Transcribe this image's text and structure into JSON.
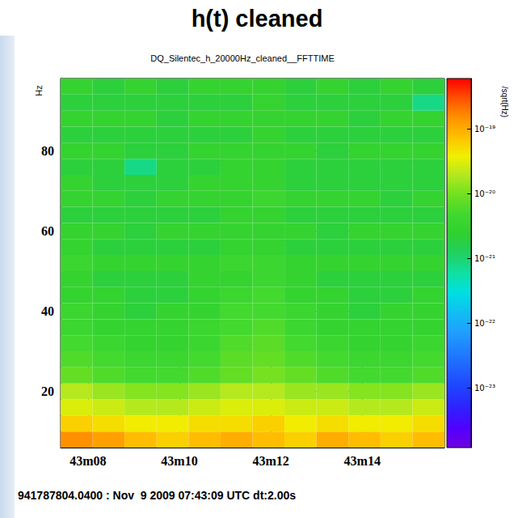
{
  "header": "h(t) cleaned",
  "footer": "941787804.0400 : Nov  9 2009 07:43:09 UTC dt:2.00s",
  "chart_data": {
    "type": "heatmap",
    "title": "DQ_Silentec_h_20000Hz_cleaned__FFTTIME",
    "ylabel": "Hz",
    "xlim": [
      7.4,
      15.8
    ],
    "xticks": [
      {
        "value": 8,
        "label": "43m08"
      },
      {
        "value": 10,
        "label": "43m10"
      },
      {
        "value": 12,
        "label": "43m12"
      },
      {
        "value": 14,
        "label": "43m14"
      }
    ],
    "ylim": [
      6,
      98
    ],
    "yticks": [
      20,
      40,
      60,
      80
    ],
    "grid": true,
    "x_edges": [
      7.4,
      8.1,
      8.8,
      9.5,
      10.2,
      10.9,
      11.6,
      12.3,
      13.0,
      13.7,
      14.4,
      15.1,
      15.8
    ],
    "y_edges": [
      6,
      10,
      14,
      18,
      22,
      26,
      30,
      34,
      38,
      42,
      46,
      50,
      54,
      58,
      62,
      66,
      70,
      74,
      78,
      82,
      86,
      90,
      94,
      98
    ],
    "cells": [
      [
        1.5e-19,
        1.2e-19,
        8e-20,
        6e-20,
        8e-20,
        1e-19,
        8e-20,
        6e-20,
        1e-19,
        8e-20,
        6e-20,
        8e-20
      ],
      [
        6e-20,
        5e-20,
        4e-20,
        4e-20,
        5e-20,
        5e-20,
        6e-20,
        4e-20,
        5e-20,
        4e-20,
        4e-20,
        5e-20
      ],
      [
        3e-20,
        2.5e-20,
        2e-20,
        2e-20,
        2.5e-20,
        3e-20,
        3e-20,
        2.5e-20,
        2.5e-20,
        2e-20,
        2e-20,
        2.5e-20
      ],
      [
        2e-20,
        1.5e-20,
        1.2e-20,
        1.2e-20,
        1.5e-20,
        2e-20,
        2e-20,
        1.5e-20,
        1.5e-20,
        1.2e-20,
        1.2e-20,
        1.5e-20
      ],
      [
        8e-21,
        6e-21,
        5e-21,
        5e-21,
        6e-21,
        8e-21,
        1e-20,
        8e-21,
        6e-21,
        5e-21,
        5e-21,
        6e-21
      ],
      [
        6e-21,
        5e-21,
        4e-21,
        4e-21,
        5e-21,
        7e-21,
        8e-21,
        6e-21,
        5e-21,
        4e-21,
        4e-21,
        5e-21
      ],
      [
        5e-21,
        4e-21,
        3e-21,
        3e-21,
        4e-21,
        6e-21,
        7e-21,
        5e-21,
        4e-21,
        3e-21,
        3e-21,
        4e-21
      ],
      [
        4e-21,
        3e-21,
        3e-21,
        3e-21,
        4e-21,
        5e-21,
        6e-21,
        4e-21,
        3e-21,
        3e-21,
        3e-21,
        3e-21
      ],
      [
        4e-21,
        3e-21,
        2e-21,
        3e-21,
        3e-21,
        5e-21,
        5e-21,
        4e-21,
        3e-21,
        2e-21,
        3e-21,
        3e-21
      ],
      [
        3e-21,
        3e-21,
        2e-21,
        2e-21,
        3e-21,
        4e-21,
        5e-21,
        3e-21,
        3e-21,
        2e-21,
        2e-21,
        3e-21
      ],
      [
        3e-21,
        2e-21,
        2e-21,
        2e-21,
        3e-21,
        3e-21,
        4e-21,
        3e-21,
        2e-21,
        2e-21,
        2e-21,
        2e-21
      ],
      [
        4e-21,
        3e-21,
        3e-21,
        3e-21,
        3e-21,
        4e-21,
        4e-21,
        3e-21,
        3e-21,
        3e-21,
        3e-21,
        3e-21
      ],
      [
        3e-21,
        2e-21,
        2e-21,
        2e-21,
        2e-21,
        3e-21,
        3e-21,
        2e-21,
        2e-21,
        2e-21,
        2e-21,
        2e-21
      ],
      [
        3e-21,
        3e-21,
        2e-21,
        3e-21,
        3e-21,
        3e-21,
        3e-21,
        3e-21,
        2e-21,
        3e-21,
        3e-21,
        3e-21
      ],
      [
        2e-21,
        2e-21,
        2e-21,
        2e-21,
        2e-21,
        3e-21,
        3e-21,
        2e-21,
        2e-21,
        2e-21,
        2e-21,
        2e-21
      ],
      [
        3e-21,
        3e-21,
        2e-21,
        3e-21,
        3e-21,
        3e-21,
        4e-21,
        3e-21,
        3e-21,
        3e-21,
        2e-21,
        3e-21
      ],
      [
        3e-21,
        2e-21,
        2e-21,
        2e-21,
        3e-21,
        3e-21,
        3e-21,
        2e-21,
        2e-21,
        2e-21,
        2e-21,
        2e-21
      ],
      [
        2e-21,
        2e-21,
        8e-22,
        2e-21,
        2e-21,
        3e-21,
        3e-21,
        2e-21,
        2e-21,
        2e-21,
        2e-21,
        2e-21
      ],
      [
        3e-21,
        3e-21,
        2e-21,
        2e-21,
        3e-21,
        3e-21,
        3e-21,
        3e-21,
        2e-21,
        3e-21,
        3e-21,
        3e-21
      ],
      [
        2e-21,
        2e-21,
        2e-21,
        2e-21,
        2e-21,
        2e-21,
        3e-21,
        2e-21,
        2e-21,
        2e-21,
        2e-21,
        2e-21
      ],
      [
        3e-21,
        3e-21,
        3e-21,
        2e-21,
        3e-21,
        3e-21,
        3e-21,
        3e-21,
        3e-21,
        2e-21,
        3e-21,
        3e-21
      ],
      [
        2e-21,
        2e-21,
        2e-21,
        2e-21,
        2e-21,
        2e-21,
        3e-21,
        2e-21,
        2e-21,
        2e-21,
        2e-21,
        8e-22
      ],
      [
        3e-21,
        2e-21,
        3e-21,
        2e-21,
        3e-21,
        3e-21,
        3e-21,
        2e-21,
        3e-21,
        2e-21,
        3e-21,
        2e-21
      ]
    ],
    "colorbar": {
      "label": "/sqrt(Hz)",
      "log": true,
      "range": [
        1.2e-24,
        6e-19
      ],
      "ticks": [
        {
          "value": 1e-19,
          "label": "10⁻¹⁹"
        },
        {
          "value": 1e-20,
          "label": "10⁻²⁰"
        },
        {
          "value": 1e-21,
          "label": "10⁻²¹"
        },
        {
          "value": 1e-22,
          "label": "10⁻²²"
        },
        {
          "value": 1e-23,
          "label": "10⁻²³"
        }
      ]
    }
  }
}
